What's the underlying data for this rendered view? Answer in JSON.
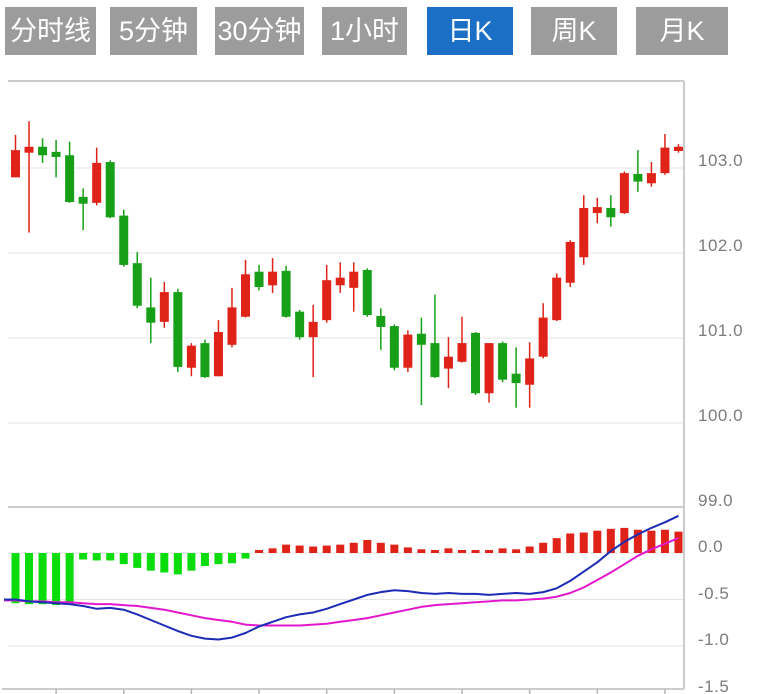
{
  "tabbar": {
    "tabs": [
      {
        "key": "time-line",
        "label": "分时线",
        "active": false
      },
      {
        "key": "5min",
        "label": "5分钟",
        "active": false
      },
      {
        "key": "30min",
        "label": "30分钟",
        "active": false
      },
      {
        "key": "1hour",
        "label": "1小时",
        "active": false
      },
      {
        "key": "daily-k",
        "label": "日K",
        "active": true
      },
      {
        "key": "weekly-k",
        "label": "周K",
        "active": false
      },
      {
        "key": "monthly-k",
        "label": "月K",
        "active": false
      }
    ],
    "active_bg": "#1b6fc4",
    "inactive_bg": "#9c9c9c",
    "text_color": "#ffffff"
  },
  "colors": {
    "up": "#e02318",
    "down": "#17a017",
    "macd_up_bar": "#e02318",
    "macd_down_bar": "#0bdc0b",
    "dif_line": "#1c2cb4",
    "dea_line": "#e318cc",
    "grid": "#e4e4e4",
    "border": "#cccccc",
    "tick": "#b5b5b5",
    "label": "#7c7c7c",
    "background": "#ffffff"
  },
  "axis": {
    "price_ticks": [
      {
        "label": "103.0",
        "value": 103.0
      },
      {
        "label": "102.0",
        "value": 102.0
      },
      {
        "label": "101.0",
        "value": 101.0
      },
      {
        "label": "100.0",
        "value": 100.0
      },
      {
        "label": "99.0",
        "value": 99.0
      }
    ],
    "macd_ticks": [
      {
        "label": "0.0",
        "value": 0.0
      },
      {
        "label": "-0.5",
        "value": -0.5
      },
      {
        "label": "-1.0",
        "value": -1.0
      },
      {
        "label": "-1.5",
        "value": -1.5
      }
    ]
  },
  "chart_data": {
    "type": "candlestick",
    "title": "Daily K-line (日K) with MACD sub-chart",
    "num_bars": 50,
    "color_convention": "red = close >= open (up), green = close < open (down)",
    "legend_position": "none",
    "grid": true,
    "panels": [
      {
        "name": "price",
        "ylim": [
          99.0,
          104.0
        ],
        "yticks": [
          103.0,
          102.0,
          101.0,
          100.0,
          99.0
        ],
        "ohlc": [
          [
            102.89,
            103.39,
            102.89,
            103.21
          ],
          [
            103.18,
            103.55,
            102.24,
            103.25
          ],
          [
            103.25,
            103.35,
            103.06,
            103.15
          ],
          [
            103.19,
            103.33,
            102.89,
            103.13
          ],
          [
            103.15,
            103.31,
            102.59,
            102.6
          ],
          [
            102.66,
            102.76,
            102.27,
            102.58
          ],
          [
            102.59,
            103.24,
            102.56,
            103.06
          ],
          [
            103.07,
            103.09,
            102.41,
            102.42
          ],
          [
            102.44,
            102.51,
            101.84,
            101.86
          ],
          [
            101.88,
            102.01,
            101.35,
            101.38
          ],
          [
            101.36,
            101.71,
            100.94,
            101.18
          ],
          [
            101.19,
            101.66,
            101.12,
            101.54
          ],
          [
            101.54,
            101.58,
            100.6,
            100.66
          ],
          [
            100.65,
            100.94,
            100.55,
            100.91
          ],
          [
            100.94,
            100.98,
            100.53,
            100.54
          ],
          [
            100.55,
            101.21,
            100.55,
            101.07
          ],
          [
            100.92,
            101.59,
            100.89,
            101.36
          ],
          [
            101.25,
            101.92,
            101.24,
            101.75
          ],
          [
            101.78,
            101.86,
            101.56,
            101.6
          ],
          [
            101.62,
            101.94,
            101.53,
            101.78
          ],
          [
            101.79,
            101.85,
            101.24,
            101.25
          ],
          [
            101.31,
            101.33,
            100.98,
            101.01
          ],
          [
            101.01,
            101.39,
            100.54,
            101.19
          ],
          [
            101.21,
            101.86,
            101.18,
            101.68
          ],
          [
            101.62,
            101.89,
            101.53,
            101.71
          ],
          [
            101.59,
            101.89,
            101.31,
            101.78
          ],
          [
            101.8,
            101.82,
            101.25,
            101.27
          ],
          [
            101.26,
            101.35,
            100.86,
            101.13
          ],
          [
            101.14,
            101.16,
            100.62,
            100.65
          ],
          [
            100.65,
            101.09,
            100.6,
            101.04
          ],
          [
            101.05,
            101.24,
            100.21,
            100.92
          ],
          [
            100.94,
            101.51,
            100.53,
            100.54
          ],
          [
            100.64,
            101.01,
            100.41,
            100.78
          ],
          [
            100.72,
            101.25,
            100.71,
            100.94
          ],
          [
            101.06,
            101.07,
            100.33,
            100.35
          ],
          [
            100.35,
            100.94,
            100.24,
            100.94
          ],
          [
            100.94,
            100.96,
            100.48,
            100.51
          ],
          [
            100.58,
            100.89,
            100.18,
            100.47
          ],
          [
            100.45,
            100.95,
            100.18,
            100.76
          ],
          [
            100.78,
            101.41,
            100.76,
            101.24
          ],
          [
            101.21,
            101.76,
            101.2,
            101.71
          ],
          [
            101.65,
            102.15,
            101.6,
            102.13
          ],
          [
            101.95,
            102.68,
            101.86,
            102.53
          ],
          [
            102.47,
            102.65,
            102.35,
            102.54
          ],
          [
            102.53,
            102.68,
            102.31,
            102.42
          ],
          [
            102.47,
            102.96,
            102.46,
            102.94
          ],
          [
            102.93,
            103.21,
            102.72,
            102.84
          ],
          [
            102.82,
            103.07,
            102.78,
            102.94
          ],
          [
            102.94,
            103.4,
            102.92,
            103.24
          ],
          [
            103.2,
            103.28,
            103.18,
            103.25
          ]
        ]
      },
      {
        "name": "macd",
        "ylim": [
          -1.5,
          0.5
        ],
        "yticks": [
          0.0,
          -0.5,
          -1.0,
          -1.5
        ],
        "histogram": [
          -0.54,
          -0.55,
          -0.55,
          -0.56,
          -0.55,
          -0.07,
          -0.08,
          -0.08,
          -0.12,
          -0.16,
          -0.19,
          -0.21,
          -0.23,
          -0.19,
          -0.14,
          -0.12,
          -0.11,
          -0.06,
          0.02,
          0.05,
          0.09,
          0.08,
          0.07,
          0.08,
          0.09,
          0.11,
          0.14,
          0.11,
          0.09,
          0.06,
          0.04,
          0.02,
          0.05,
          0.03,
          0.02,
          0.03,
          0.05,
          0.04,
          0.07,
          0.11,
          0.16,
          0.21,
          0.22,
          0.24,
          0.26,
          0.27,
          0.25,
          0.24,
          0.25,
          0.23
        ],
        "dif": [
          -0.5,
          -0.52,
          -0.53,
          -0.54,
          -0.55,
          -0.57,
          -0.6,
          -0.59,
          -0.61,
          -0.66,
          -0.72,
          -0.78,
          -0.84,
          -0.89,
          -0.92,
          -0.93,
          -0.91,
          -0.86,
          -0.79,
          -0.74,
          -0.69,
          -0.66,
          -0.64,
          -0.6,
          -0.55,
          -0.5,
          -0.45,
          -0.42,
          -0.4,
          -0.41,
          -0.43,
          -0.44,
          -0.43,
          -0.44,
          -0.44,
          -0.45,
          -0.44,
          -0.43,
          -0.44,
          -0.42,
          -0.38,
          -0.3,
          -0.2,
          -0.1,
          0.02,
          0.12,
          0.2,
          0.27,
          0.33,
          0.4
        ],
        "dea": [
          -0.51,
          -0.52,
          -0.52,
          -0.53,
          -0.53,
          -0.54,
          -0.55,
          -0.55,
          -0.56,
          -0.57,
          -0.59,
          -0.61,
          -0.64,
          -0.67,
          -0.7,
          -0.72,
          -0.74,
          -0.77,
          -0.78,
          -0.78,
          -0.78,
          -0.78,
          -0.77,
          -0.76,
          -0.74,
          -0.72,
          -0.7,
          -0.67,
          -0.64,
          -0.61,
          -0.58,
          -0.56,
          -0.55,
          -0.54,
          -0.53,
          -0.52,
          -0.51,
          -0.51,
          -0.5,
          -0.49,
          -0.47,
          -0.43,
          -0.37,
          -0.29,
          -0.21,
          -0.12,
          -0.03,
          0.04,
          0.1,
          0.16
        ]
      }
    ]
  }
}
